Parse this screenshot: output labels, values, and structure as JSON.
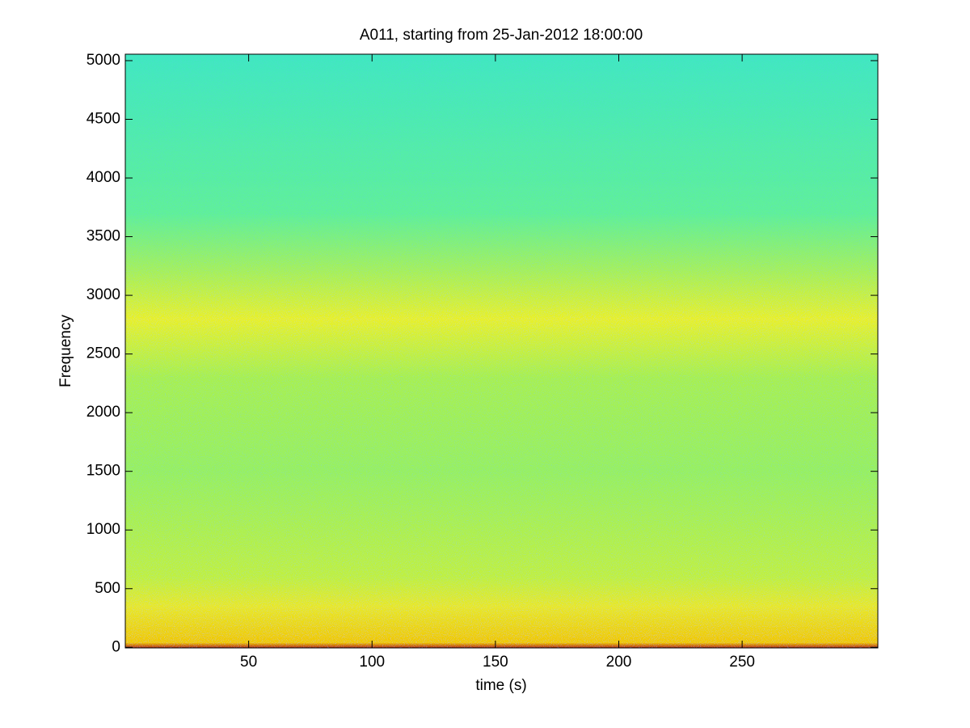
{
  "chart_data": {
    "type": "spectrogram",
    "title": "A011, starting from 25-Jan-2012 18:00:00",
    "xlabel": "time (s)",
    "ylabel": "Frequency",
    "xlim": [
      0,
      305
    ],
    "xticks": [
      50,
      100,
      150,
      200,
      250
    ],
    "ylim": [
      -5,
      5055
    ],
    "yticks": [
      0,
      500,
      1000,
      1500,
      2000,
      2500,
      3000,
      3500,
      4000,
      4500,
      5000
    ],
    "bands": [
      {
        "freq": -5,
        "color": "#b02010"
      },
      {
        "freq": 40,
        "color": "#f0c800"
      },
      {
        "freq": 350,
        "color": "#e8e828"
      },
      {
        "freq": 600,
        "color": "#c0f040"
      },
      {
        "freq": 1500,
        "color": "#98f060"
      },
      {
        "freq": 2300,
        "color": "#a8f050"
      },
      {
        "freq": 2800,
        "color": "#e8f028"
      },
      {
        "freq": 3200,
        "color": "#a8f058"
      },
      {
        "freq": 3700,
        "color": "#60f098"
      },
      {
        "freq": 5055,
        "color": "#40e8c0"
      }
    ]
  }
}
